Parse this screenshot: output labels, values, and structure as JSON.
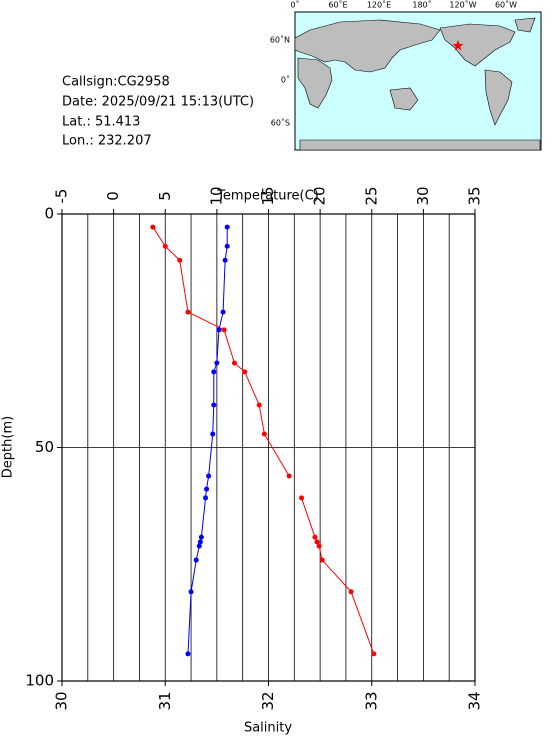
{
  "chart_data": {
    "type": "profile",
    "x_label": "Temperature(C)",
    "x2_label": "Salinity",
    "y_label": "Depth(m)",
    "xlim": [
      -5,
      35
    ],
    "xticks": [
      -5,
      0,
      5,
      10,
      15,
      20,
      25,
      30,
      35
    ],
    "xgrid": [
      -2.5,
      0,
      2.5,
      5,
      7.5,
      10,
      12.5,
      15,
      17.5,
      20,
      22.5,
      25,
      27.5,
      30,
      32.5
    ],
    "x2lim": [
      30,
      34
    ],
    "x2ticks": [
      30,
      31,
      32,
      33,
      34
    ],
    "ylim": [
      0,
      100
    ],
    "yticks": [
      0,
      50,
      100
    ],
    "ygrid": [
      50
    ],
    "y_inverted": true,
    "depth": [
      2.8,
      6.9,
      9.9,
      21.0,
      24.8,
      31.9,
      33.8,
      40.9,
      47.1,
      56.1,
      58.9,
      60.8,
      69.2,
      70.2,
      71.1,
      74.1,
      80.9,
      94.2
    ],
    "series": [
      {
        "name": "Temperature",
        "color": "#ff0000",
        "axis": "x",
        "values": [
          3.8,
          5.0,
          6.4,
          7.2,
          10.7,
          11.7,
          12.7,
          14.1,
          14.6,
          17.0,
          null,
          18.2,
          19.5,
          19.7,
          19.9,
          20.2,
          23.0,
          25.2
        ]
      },
      {
        "name": "Salinity",
        "color": "#0000ff",
        "axis": "x2",
        "values": [
          31.6,
          31.6,
          31.58,
          31.56,
          31.52,
          31.5,
          31.47,
          31.47,
          31.46,
          31.42,
          31.4,
          31.39,
          31.35,
          31.34,
          31.33,
          31.3,
          31.25,
          31.22
        ]
      }
    ]
  },
  "info": {
    "callsign": "Callsign:CG2958",
    "date": "Date:  2025/09/21 15:13(UTC)",
    "lat": "Lat.:  51.413",
    "lon": "Lon.:  232.207"
  },
  "map": {
    "lon_labels": [
      "0˚",
      "60˚E",
      "120˚E",
      "180˚",
      "120˚W",
      "60˚W"
    ],
    "lat_labels": [
      "60˚N",
      "0˚",
      "60˚S"
    ]
  }
}
